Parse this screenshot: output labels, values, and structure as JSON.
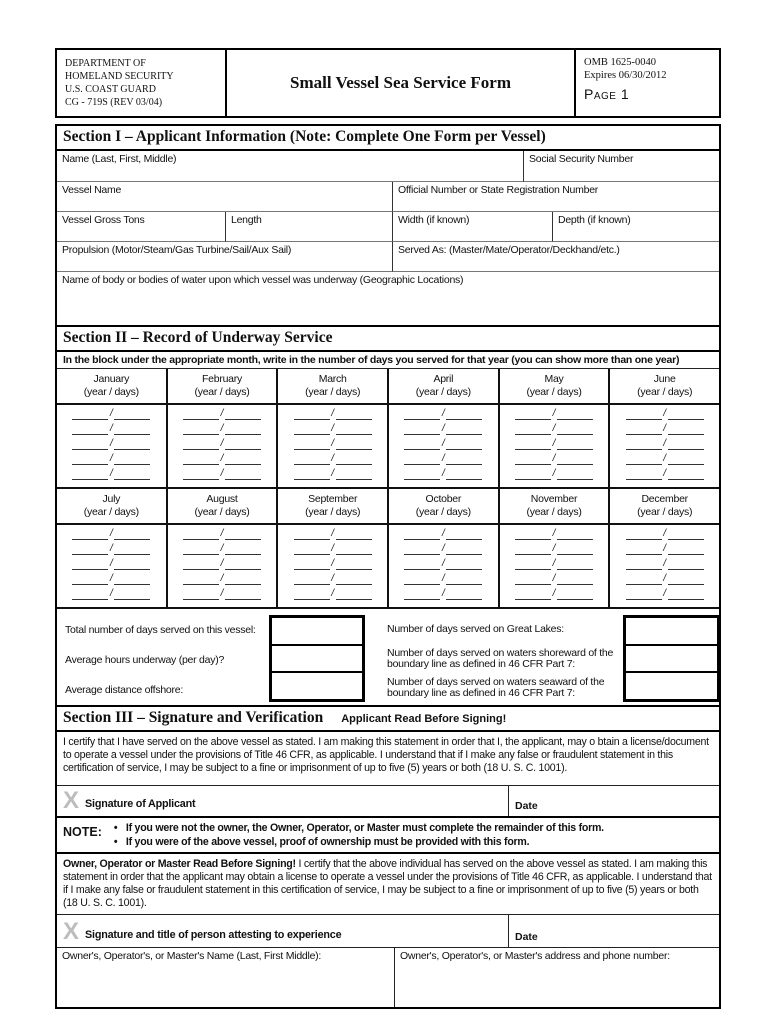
{
  "header": {
    "agency_lines": [
      "DEPARTMENT OF",
      "HOMELAND SECURITY",
      "U.S. COAST GUARD",
      "CG - 719S (REV 03/04)"
    ],
    "title": "Small Vessel Sea Service Form",
    "omb": "OMB 1625-0040",
    "expires": "Expires 06/30/2012",
    "page": "Page 1"
  },
  "section1": {
    "title": "Section I – Applicant Information (Note: Complete One Form per Vessel)",
    "name_label": "Name (Last, First, Middle)",
    "ssn_label": "Social Security Number",
    "vessel_name_label": "Vessel Name",
    "official_number_label": "Official Number or State Registration Number",
    "gross_tons_label": "Vessel Gross Tons",
    "length_label": "Length",
    "width_label": "Width (if known)",
    "depth_label": "Depth (if known)",
    "propulsion_label": "Propulsion (Motor/Steam/Gas Turbine/Sail/Aux Sail)",
    "served_as_label": "Served As: (Master/Mate/Operator/Deckhand/etc.)",
    "waters_label": "Name of body or bodies of water upon which vessel was underway (Geographic Locations)"
  },
  "section2": {
    "title": "Section II – Record of Underway Service",
    "instruction": "In the block under the appropriate month, write in the number of days you served for that year (you can show more than one year)",
    "year_days": "(year / days)",
    "slash": "/",
    "months": [
      "January",
      "February",
      "March",
      "April",
      "May",
      "June",
      "July",
      "August",
      "September",
      "October",
      "November",
      "December"
    ],
    "totals_left": [
      "Total number of days served on this vessel:",
      "Average hours underway (per day)?",
      "Average distance offshore:"
    ],
    "totals_right": [
      "Number of days served on Great Lakes:",
      "Number of days served on waters shoreward of the boundary line as defined in 46 CFR Part 7:",
      "Number of days served on waters seaward of the boundary line as defined in 46 CFR Part 7:"
    ]
  },
  "section3": {
    "title": "Section III – Signature and Verification",
    "subtitle": "Applicant Read Before Signing!",
    "certify_text": "I certify that I have served on the above vessel as stated.  I am making this statement in order that I, the applicant, may o btain a license/document to operate a vessel under the provisions of Title 46 CFR, as applicable. I understand that if I make any false or fraudulent statement in this certification of service, I may be subject to a fine or imprisonment of up to five (5) years or both (18 U. S. C. 1001).",
    "x_mark": "X",
    "signature_label": "Signature of Applicant",
    "date_label": "Date",
    "note_label": "NOTE:",
    "note_bullets": [
      "If you were not the owner, the Owner, Operator, or Master must complete the remainder of this form.",
      "If you were of the above vessel, proof of ownership must be provided with this form."
    ],
    "owner_lead": "Owner, Operator or Master Read Before Signing!",
    "owner_text": " I certify that the above individual has served on the above vessel as stated. I am making this statement in order that the applicant may obtain a license to operate a vessel under the provisions of Title 46 CFR, as applicable. I understand that if I make any false or fraudulent statement in this certification of service, I may be subject to a fine or imprisonment of up to five (5) years or both (18 U. S. C. 1001).",
    "attest_signature_label": "Signature and title of person attesting to experience",
    "owner_name_label": "Owner's, Operator's, or Master's Name (Last, First Middle):",
    "owner_address_label": "Owner's, Operator's, or Master's address and phone number:"
  }
}
